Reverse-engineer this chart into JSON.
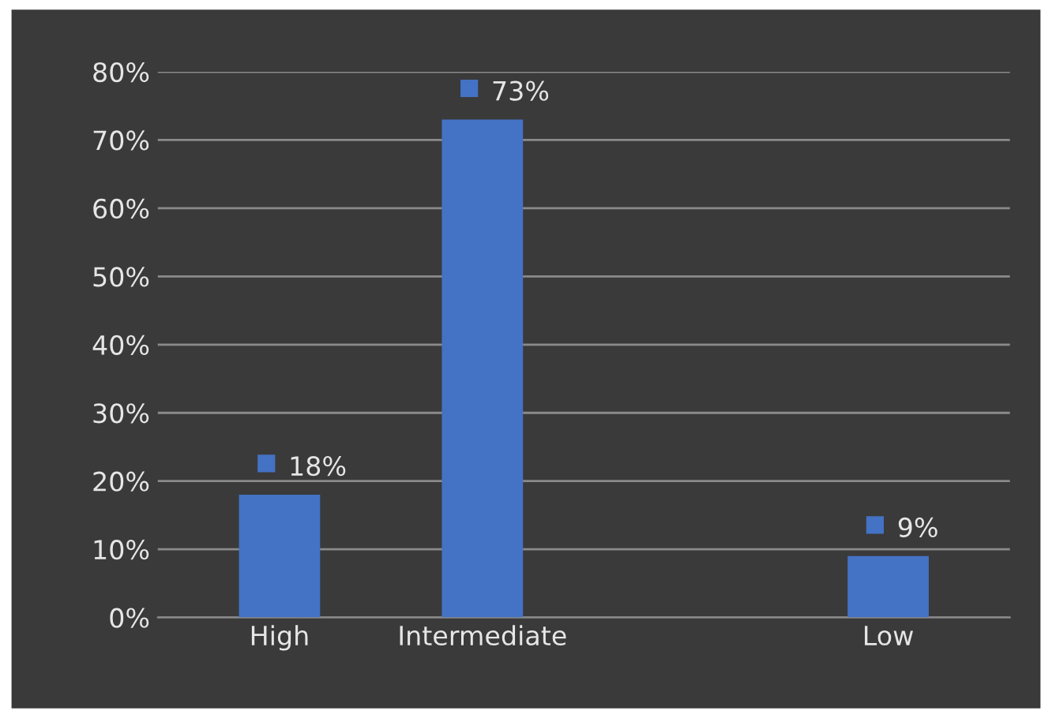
{
  "chart_data": {
    "type": "bar",
    "categories": [
      "High",
      "Intermediate",
      null,
      "Low"
    ],
    "values": [
      18,
      73,
      null,
      9
    ],
    "value_labels": [
      "18%",
      "73%",
      null,
      "9%"
    ],
    "color": "#4472c4",
    "ylim": [
      0,
      80
    ],
    "yticks": [
      {
        "value": 0,
        "label": "0%"
      },
      {
        "value": 10,
        "label": "10%"
      },
      {
        "value": 20,
        "label": "20%"
      },
      {
        "value": 30,
        "label": "30%"
      },
      {
        "value": 40,
        "label": "40%"
      },
      {
        "value": 50,
        "label": "50%"
      },
      {
        "value": 60,
        "label": "60%"
      },
      {
        "value": 70,
        "label": "70%"
      },
      {
        "value": 80,
        "label": "80%"
      }
    ],
    "grid": "y"
  }
}
